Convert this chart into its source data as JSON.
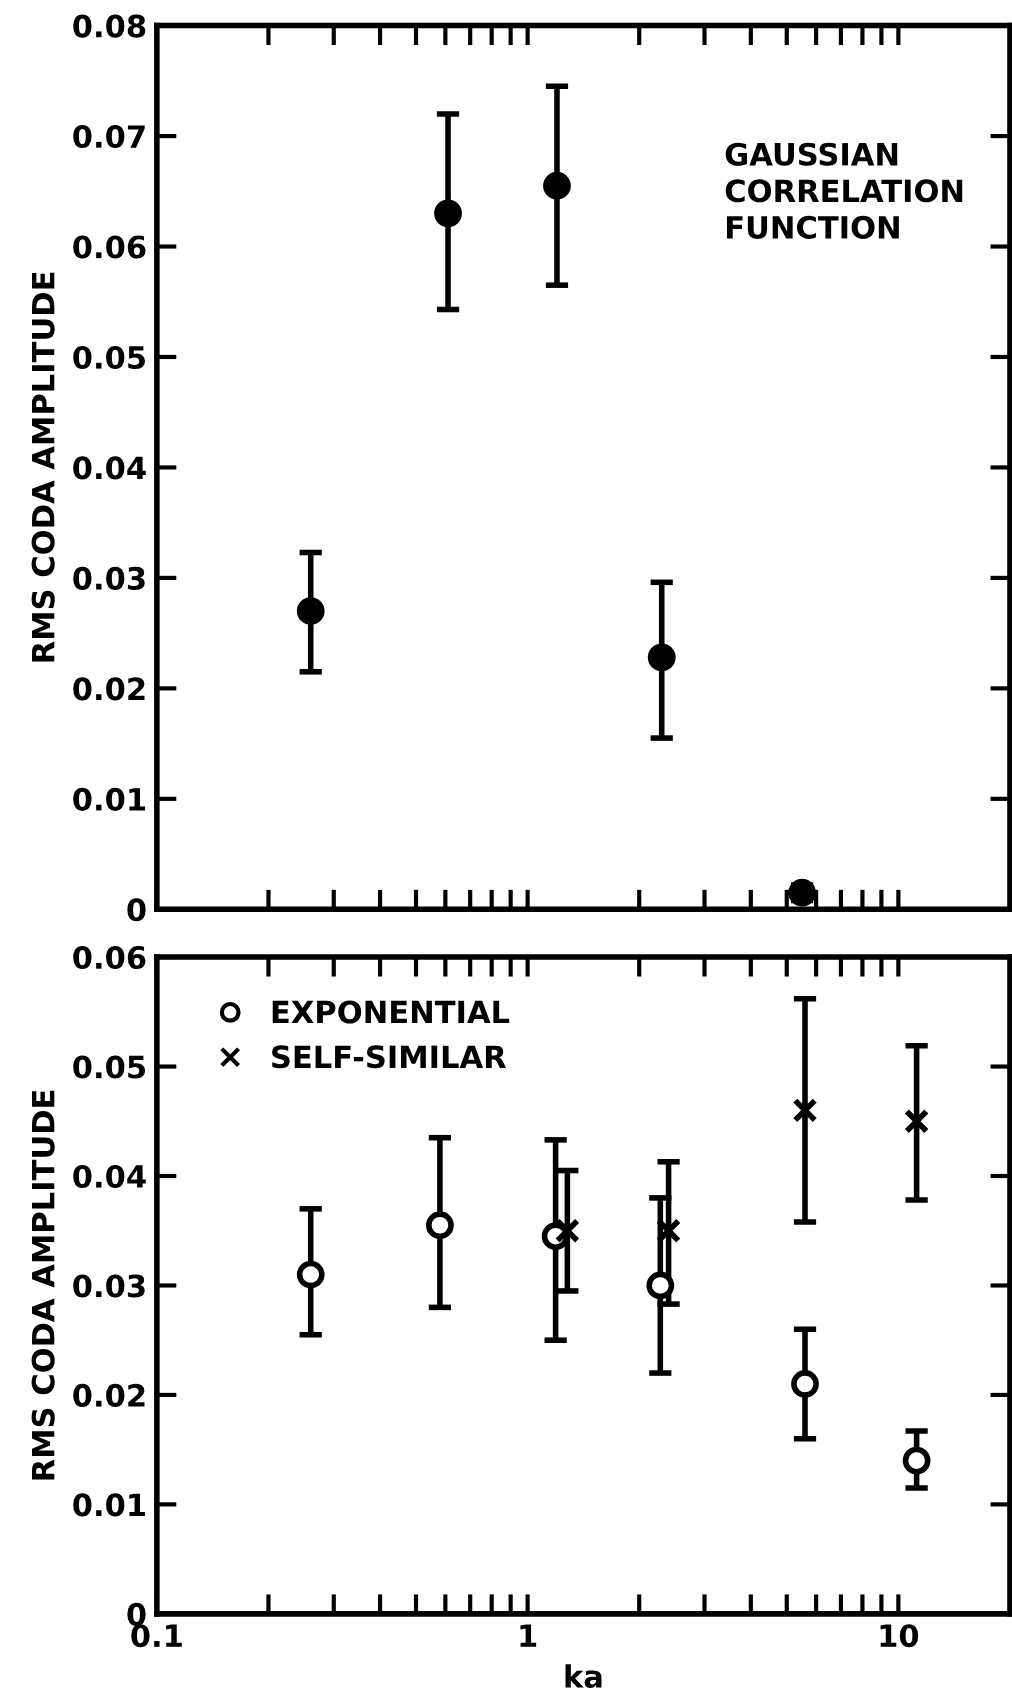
{
  "chart_data": [
    {
      "type": "scatter",
      "ylabel": "RMS CODA AMPLITUDE",
      "annotations": [
        "GAUSSIAN\nCORRELATION\nFUNCTION"
      ],
      "log": "x",
      "xlim": [
        0.1,
        20
      ],
      "xticks": [
        {
          "value": 0.1,
          "label": null
        },
        {
          "value": 0.2,
          "label": null
        },
        {
          "value": 0.3,
          "label": null
        },
        {
          "value": 0.4,
          "label": null
        },
        {
          "value": 0.5,
          "label": null
        },
        {
          "value": 0.6,
          "label": null
        },
        {
          "value": 0.7,
          "label": null
        },
        {
          "value": 0.8,
          "label": null
        },
        {
          "value": 0.9,
          "label": null
        },
        {
          "value": 1,
          "label": null
        },
        {
          "value": 2,
          "label": null
        },
        {
          "value": 3,
          "label": null
        },
        {
          "value": 4,
          "label": null
        },
        {
          "value": 5,
          "label": null
        },
        {
          "value": 6,
          "label": null
        },
        {
          "value": 7,
          "label": null
        },
        {
          "value": 8,
          "label": null
        },
        {
          "value": 9,
          "label": null
        },
        {
          "value": 10,
          "label": null
        }
      ],
      "ylim": [
        0,
        0.08
      ],
      "yticks": [
        0,
        0.01,
        0.02,
        0.03,
        0.04,
        0.05,
        0.06,
        0.07,
        0.08
      ],
      "tick_labels": "y",
      "grid": false,
      "legend": false,
      "series": [
        {
          "color": "#000000",
          "marker": "circle",
          "x": [
            0.26,
            0.61,
            1.2,
            2.3,
            5.5
          ],
          "values": [
            0.027,
            0.063,
            0.0655,
            0.0228,
            0.0015
          ],
          "errors": [
            [
              0.0215,
              0.0323
            ],
            [
              0.0543,
              0.072
            ],
            [
              0.0565,
              0.0745
            ],
            [
              0.0155,
              0.0296
            ],
            [
              0.0008,
              0.0022
            ]
          ]
        }
      ]
    },
    {
      "type": "scatter",
      "xlabel": "ka",
      "ylabel": "RMS CODA AMPLITUDE",
      "log": "x",
      "xlim": [
        0.1,
        20
      ],
      "xticks": [
        0.1,
        {
          "value": 0.2,
          "label": null
        },
        {
          "value": 0.3,
          "label": null
        },
        {
          "value": 0.4,
          "label": null
        },
        {
          "value": 0.5,
          "label": null
        },
        {
          "value": 0.6,
          "label": null
        },
        {
          "value": 0.7,
          "label": null
        },
        {
          "value": 0.8,
          "label": null
        },
        {
          "value": 0.9,
          "label": null
        },
        1,
        {
          "value": 2,
          "label": null
        },
        {
          "value": 3,
          "label": null
        },
        {
          "value": 4,
          "label": null
        },
        {
          "value": 5,
          "label": null
        },
        {
          "value": 6,
          "label": null
        },
        {
          "value": 7,
          "label": null
        },
        {
          "value": 8,
          "label": null
        },
        {
          "value": 9,
          "label": null
        },
        10
      ],
      "ylim": [
        0,
        0.06
      ],
      "yticks": [
        0,
        0.01,
        0.02,
        0.03,
        0.04,
        0.05,
        0.06
      ],
      "grid": false,
      "legend": "top left",
      "series": [
        {
          "name": "EXPONENTIAL",
          "color": "#000000",
          "marker": "circle",
          "x": [
            0.26,
            0.58,
            1.19,
            2.28,
            5.6,
            11.2
          ],
          "values": [
            0.031,
            0.0355,
            0.0345,
            0.03,
            0.021,
            0.014
          ],
          "errors": [
            [
              0.0255,
              0.037
            ],
            [
              0.028,
              0.0435
            ],
            [
              0.025,
              0.0433
            ],
            [
              0.022,
              0.038
            ],
            [
              0.016,
              0.026
            ],
            [
              0.0115,
              0.0167
            ]
          ]
        },
        {
          "name": "SELF-SIMILAR",
          "color": "#000000",
          "marker": "cross",
          "x": [
            1.28,
            2.4,
            5.6,
            11.2
          ],
          "values": [
            0.035,
            0.035,
            0.046,
            0.045
          ],
          "errors": [
            [
              0.0295,
              0.0405
            ],
            [
              0.0283,
              0.0413
            ],
            [
              0.0358,
              0.0562
            ],
            [
              0.0378,
              0.0519
            ]
          ]
        }
      ]
    }
  ]
}
